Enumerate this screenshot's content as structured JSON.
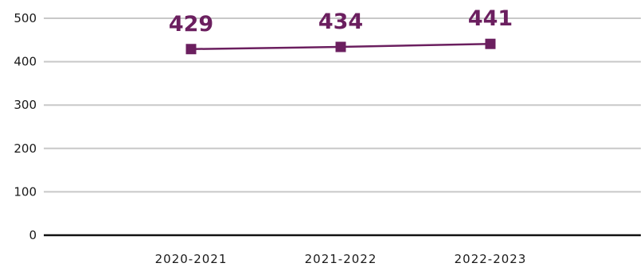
{
  "chart_data": {
    "type": "line",
    "title": "",
    "xlabel": "",
    "ylabel": "",
    "categories": [
      "2020-2021",
      "2021-2022",
      "2022-2023"
    ],
    "series": [
      {
        "values": [
          429,
          434,
          441
        ],
        "color": "#6b1f5f",
        "marker": "square"
      }
    ],
    "data_labels": [
      "429",
      "434",
      "441"
    ],
    "ylim": [
      0,
      500
    ],
    "yticks": [
      0,
      100,
      200,
      300,
      400,
      500
    ],
    "ytick_labels": [
      "0",
      "100",
      "200",
      "300",
      "400",
      "500"
    ],
    "grid": true,
    "grid_color": "#c8c8c8",
    "axis_color": "#111111",
    "legend": "none"
  }
}
